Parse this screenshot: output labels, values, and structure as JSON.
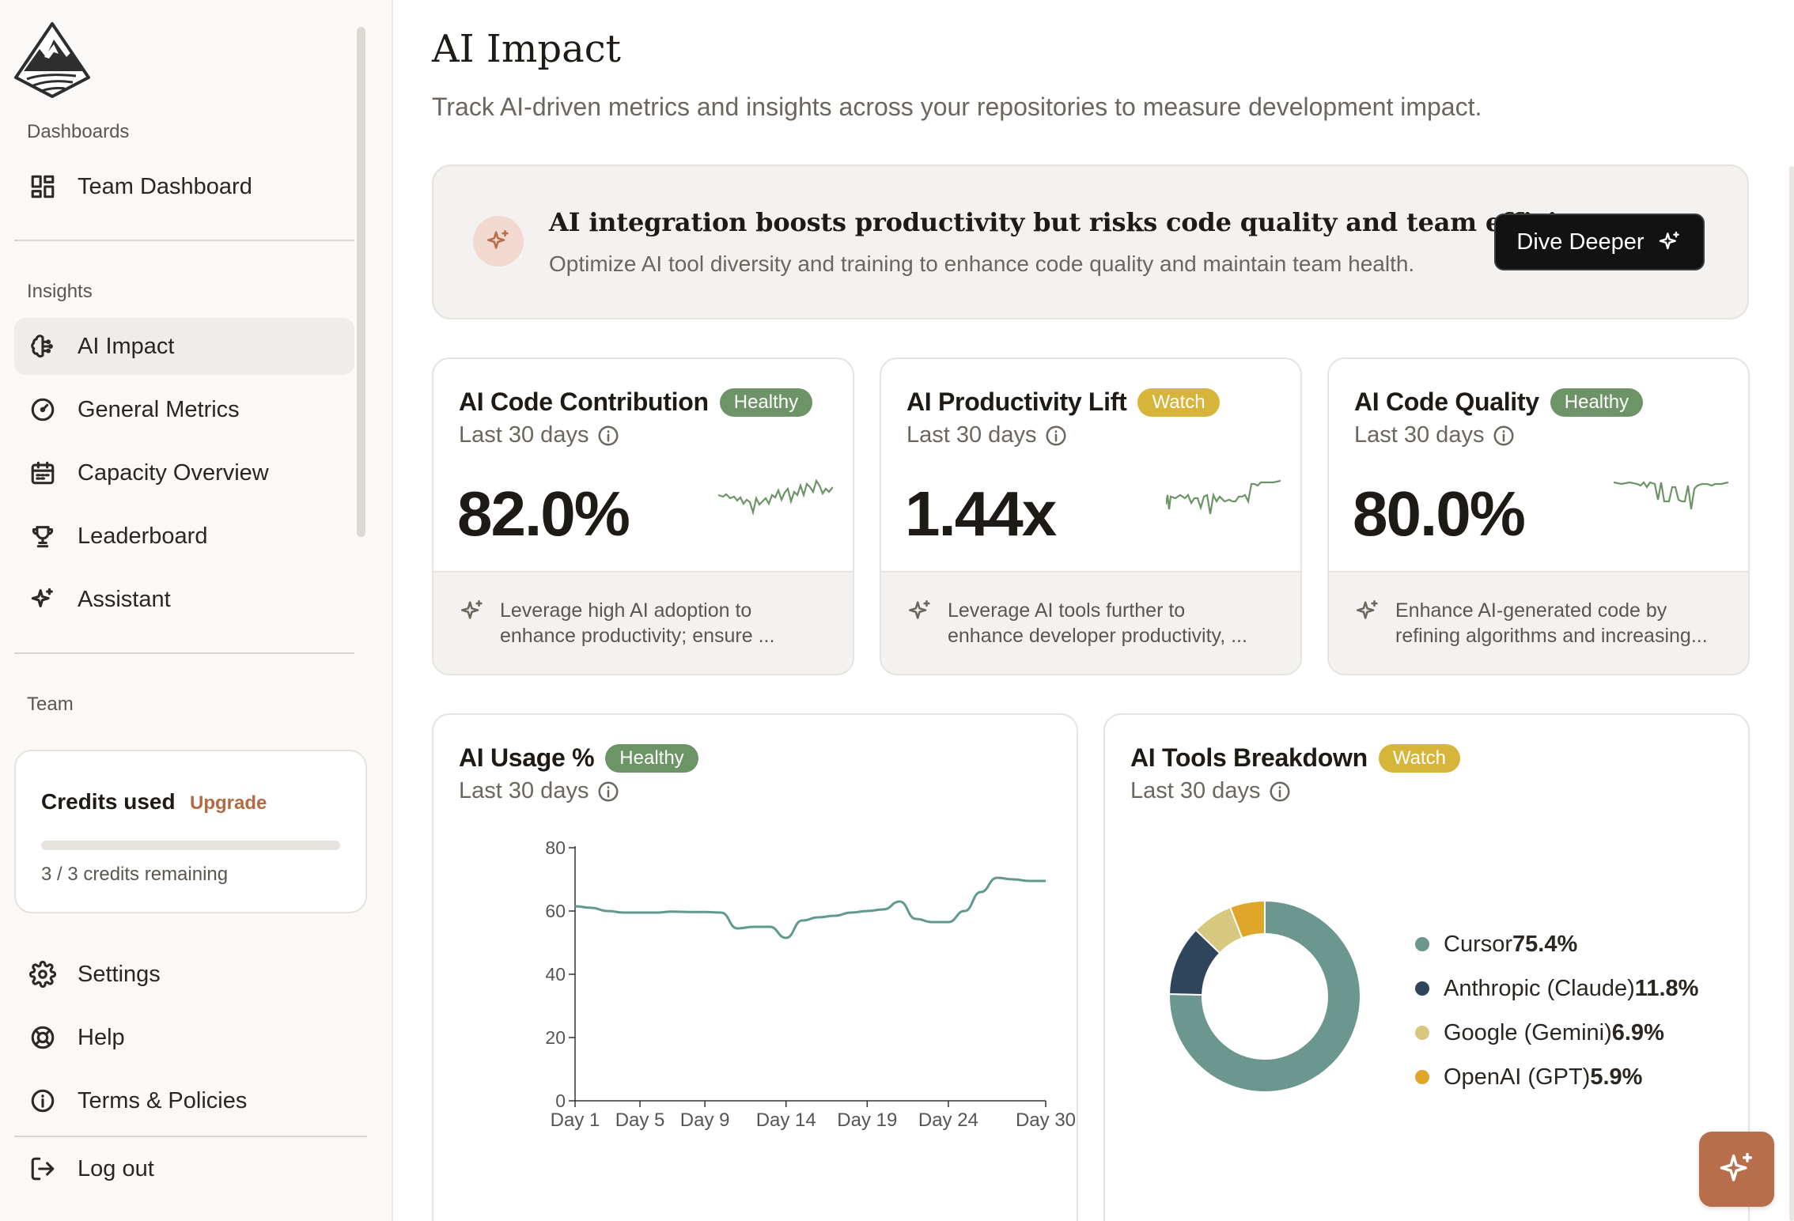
{
  "sidebar": {
    "sections": {
      "dashboards": "Dashboards",
      "insights": "Insights",
      "team": "Team"
    },
    "dashboard_items": [
      {
        "label": "Team Dashboard",
        "icon": "grid-icon"
      }
    ],
    "insight_items": [
      {
        "label": "AI Impact",
        "icon": "brain-icon",
        "active": true
      },
      {
        "label": "General Metrics",
        "icon": "gauge-icon"
      },
      {
        "label": "Capacity Overview",
        "icon": "calendar-icon"
      },
      {
        "label": "Leaderboard",
        "icon": "trophy-icon"
      },
      {
        "label": "Assistant",
        "icon": "sparkle-icon"
      }
    ],
    "credits": {
      "title": "Credits used",
      "upgrade": "Upgrade",
      "remaining": "3 / 3 credits remaining",
      "used_fraction": 0
    },
    "bottom_items": [
      {
        "label": "Settings",
        "icon": "gear-icon"
      },
      {
        "label": "Help",
        "icon": "lifebuoy-icon"
      },
      {
        "label": "Terms & Policies",
        "icon": "info-icon"
      },
      {
        "label": "Log out",
        "icon": "logout-icon"
      }
    ]
  },
  "header": {
    "title": "AI Impact",
    "subtitle": "Track AI-driven metrics and insights across your repositories to measure development impact."
  },
  "banner": {
    "title": "AI integration boosts productivity but risks code quality and team efficiency.",
    "subtitle": "Optimize AI tool diversity and training to enhance code quality and maintain team health.",
    "button": "Dive Deeper"
  },
  "metric_cards": [
    {
      "title": "AI Code Contribution",
      "badge": "Healthy",
      "period": "Last 30 days",
      "value": "82.0%",
      "insight_line1": "Leverage high AI adoption to",
      "insight_line2": "enhance productivity; ensure ..."
    },
    {
      "title": "AI Productivity Lift",
      "badge": "Watch",
      "period": "Last 30 days",
      "value": "1.44x",
      "insight_line1": "Leverage AI tools further to",
      "insight_line2": "enhance developer productivity, ..."
    },
    {
      "title": "AI Code Quality",
      "badge": "Healthy",
      "period": "Last 30 days",
      "value": "80.0%",
      "insight_line1": "Enhance AI-generated code by",
      "insight_line2": "refining algorithms and increasing..."
    }
  ],
  "usage_card": {
    "title": "AI Usage %",
    "badge": "Healthy",
    "period": "Last 30 days"
  },
  "tools_card": {
    "title": "AI Tools Breakdown",
    "badge": "Watch",
    "period": "Last 30 days"
  },
  "colors": {
    "healthy": "#6d9466",
    "watch": "#d6b53a",
    "line": "#5f998f",
    "accent": "#b86d4b"
  },
  "chart_data": [
    {
      "type": "line",
      "x": [
        "Day 1",
        "Day 2",
        "Day 3",
        "Day 4",
        "Day 5",
        "Day 6",
        "Day 7",
        "Day 8",
        "Day 9",
        "Day 10",
        "Day 11",
        "Day 12",
        "Day 13",
        "Day 14",
        "Day 15",
        "Day 16",
        "Day 17",
        "Day 18",
        "Day 19",
        "Day 20",
        "Day 21",
        "Day 22",
        "Day 23",
        "Day 24",
        "Day 25",
        "Day 26",
        "Day 27",
        "Day 28",
        "Day 29",
        "Day 30"
      ],
      "xticks": [
        "Day 1",
        "Day 5",
        "Day 9",
        "Day 14",
        "Day 19",
        "Day 24",
        "Day 30"
      ],
      "series": [
        {
          "values": [
            61.5,
            61,
            60,
            59.5,
            59.5,
            59.5,
            59.8,
            59.7,
            59.7,
            59.5,
            54.5,
            55,
            55,
            51.5,
            57,
            58,
            58.5,
            59.5,
            60,
            60.5,
            63,
            57.5,
            56.5,
            56.5,
            60,
            66,
            70.5,
            70,
            69.5,
            69.5
          ]
        }
      ],
      "yticks": [
        0,
        20,
        40,
        60,
        80
      ],
      "ylim": [
        0,
        80
      ],
      "grid": false
    },
    {
      "type": "pie",
      "labels": [
        "Cursor",
        "Anthropic (Claude)",
        "Google (Gemini)",
        "OpenAI (GPT)"
      ],
      "values": [
        75.4,
        11.8,
        6.9,
        5.9
      ],
      "display": [
        "75.4%",
        "11.8%",
        "6.9%",
        "5.9%"
      ],
      "colors": [
        "#6b978e",
        "#2f455c",
        "#d8c77f",
        "#dfa62a"
      ]
    }
  ]
}
